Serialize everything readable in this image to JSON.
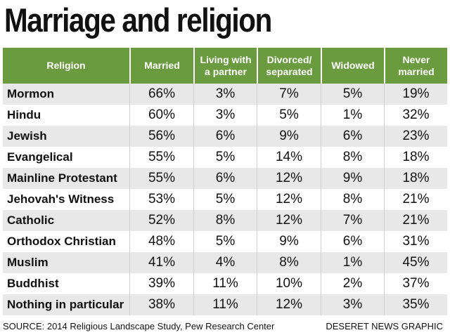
{
  "title": "Marriage and religion",
  "chart_data": {
    "type": "table",
    "columns": [
      "Religion",
      "Married",
      "Living with a partner",
      "Divorced/ separated",
      "Widowed",
      "Never married"
    ],
    "rows": [
      [
        "Mormon",
        "66%",
        "3%",
        "7%",
        "5%",
        "19%"
      ],
      [
        "Hindu",
        "60%",
        "3%",
        "5%",
        "1%",
        "32%"
      ],
      [
        "Jewish",
        "56%",
        "6%",
        "9%",
        "6%",
        "23%"
      ],
      [
        "Evangelical",
        "55%",
        "5%",
        "14%",
        "8%",
        "18%"
      ],
      [
        "Mainline Protestant",
        "55%",
        "6%",
        "12%",
        "9%",
        "18%"
      ],
      [
        "Jehovah's Witness",
        "53%",
        "5%",
        "12%",
        "8%",
        "21%"
      ],
      [
        "Catholic",
        "52%",
        "8%",
        "12%",
        "7%",
        "21%"
      ],
      [
        "Orthodox Christian",
        "48%",
        "5%",
        "9%",
        "6%",
        "31%"
      ],
      [
        "Muslim",
        "41%",
        "4%",
        "8%",
        "1%",
        "45%"
      ],
      [
        "Buddhist",
        "39%",
        "11%",
        "10%",
        "2%",
        "37%"
      ],
      [
        "Nothing in particular",
        "38%",
        "11%",
        "12%",
        "3%",
        "35%"
      ]
    ]
  },
  "source": "SOURCE: 2014 Religious Landscape Study, Pew Research Center",
  "credit": "DESERET NEWS GRAPHIC",
  "colors": {
    "header_bg": "#6a9b3f",
    "header_text": "#ffffff",
    "row_shade": "#e8e8e8"
  }
}
